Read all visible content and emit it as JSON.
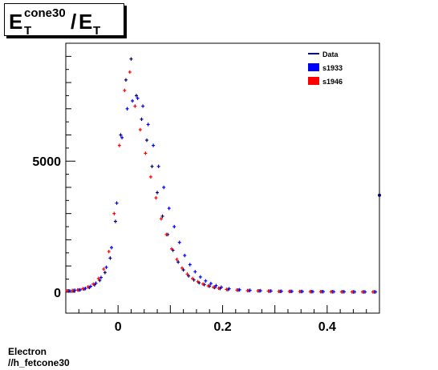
{
  "title": {
    "base1": "E",
    "sub1": "T",
    "sup1": "cone30",
    "slash": "/",
    "base2": "E",
    "sub2": "T"
  },
  "footer": {
    "line1": "Electron",
    "line2": "//h_fetcone30"
  },
  "colors": {
    "data": "#000080",
    "s1933": "#0000ff",
    "s1946": "#ff0000"
  },
  "chart_data": {
    "type": "scatter",
    "xlim": [
      -0.1,
      0.5
    ],
    "ylim": [
      -800,
      9500
    ],
    "xticks": [
      0,
      0.2,
      0.4
    ],
    "xtick_labels": [
      "0",
      "0.2",
      "0.4"
    ],
    "yticks": [
      0,
      5000
    ],
    "ytick_labels": [
      "0",
      "5000"
    ],
    "legend": {
      "position": "top-right",
      "entries": [
        "Data",
        "s1933",
        "s1946"
      ]
    },
    "overflow_point": {
      "x": 0.5,
      "y": 3700
    },
    "series": [
      {
        "name": "Data",
        "x": [
          -0.095,
          -0.085,
          -0.075,
          -0.065,
          -0.055,
          -0.045,
          -0.035,
          -0.025,
          -0.015,
          -0.005,
          0.005,
          0.015,
          0.025,
          0.035,
          0.045,
          0.055,
          0.065,
          0.075,
          0.085,
          0.095,
          0.105,
          0.115,
          0.125,
          0.135,
          0.145,
          0.155,
          0.165,
          0.175,
          0.185,
          0.195,
          0.21,
          0.23,
          0.25,
          0.27,
          0.29,
          0.31,
          0.33,
          0.35,
          0.37,
          0.39,
          0.41,
          0.43,
          0.45,
          0.47,
          0.49
        ],
        "y": [
          50,
          60,
          80,
          120,
          180,
          280,
          450,
          750,
          1300,
          2700,
          6000,
          8100,
          8900,
          7500,
          6600,
          5800,
          4800,
          3800,
          2900,
          2200,
          1600,
          1150,
          850,
          620,
          470,
          360,
          290,
          230,
          180,
          140,
          100,
          80,
          60,
          50,
          40,
          30,
          30,
          25,
          20,
          20,
          15,
          15,
          10,
          10,
          10
        ]
      },
      {
        "name": "s1933",
        "x": [
          -0.095,
          -0.085,
          -0.075,
          -0.065,
          -0.055,
          -0.045,
          -0.035,
          -0.025,
          -0.015,
          -0.005,
          0.005,
          0.015,
          0.025,
          0.035,
          0.045,
          0.055,
          0.065,
          0.075,
          0.085,
          0.095,
          0.105,
          0.115,
          0.125,
          0.135,
          0.145,
          0.155,
          0.165,
          0.175,
          0.185,
          0.195,
          0.21,
          0.23,
          0.25,
          0.27,
          0.29,
          0.31,
          0.33,
          0.35,
          0.37,
          0.39,
          0.41,
          0.43,
          0.45,
          0.47,
          0.49
        ],
        "y": [
          50,
          70,
          90,
          140,
          220,
          340,
          560,
          950,
          1700,
          3400,
          5900,
          7000,
          7300,
          7400,
          7100,
          6400,
          5600,
          4800,
          4000,
          3200,
          2500,
          1900,
          1400,
          1050,
          780,
          580,
          430,
          330,
          250,
          190,
          130,
          90,
          70,
          55,
          45,
          35,
          30,
          25,
          20,
          20,
          15,
          15,
          10,
          10,
          10
        ]
      },
      {
        "name": "s1946",
        "x": [
          -0.095,
          -0.085,
          -0.075,
          -0.065,
          -0.055,
          -0.045,
          -0.035,
          -0.025,
          -0.015,
          -0.005,
          0.005,
          0.015,
          0.025,
          0.035,
          0.045,
          0.055,
          0.065,
          0.075,
          0.085,
          0.095,
          0.105,
          0.115,
          0.125,
          0.135,
          0.145,
          0.155,
          0.165,
          0.175,
          0.185,
          0.195,
          0.21,
          0.23,
          0.25,
          0.27,
          0.29,
          0.31,
          0.33,
          0.35,
          0.37,
          0.39,
          0.41,
          0.43,
          0.45,
          0.47,
          0.49
        ],
        "y": [
          50,
          65,
          85,
          130,
          200,
          310,
          520,
          880,
          1550,
          3000,
          5600,
          7700,
          8400,
          7100,
          6200,
          5300,
          4400,
          3600,
          2800,
          2200,
          1650,
          1250,
          920,
          690,
          520,
          400,
          310,
          240,
          190,
          150,
          105,
          80,
          60,
          50,
          40,
          30,
          28,
          22,
          20,
          18,
          15,
          12,
          10,
          10,
          10
        ]
      }
    ]
  }
}
